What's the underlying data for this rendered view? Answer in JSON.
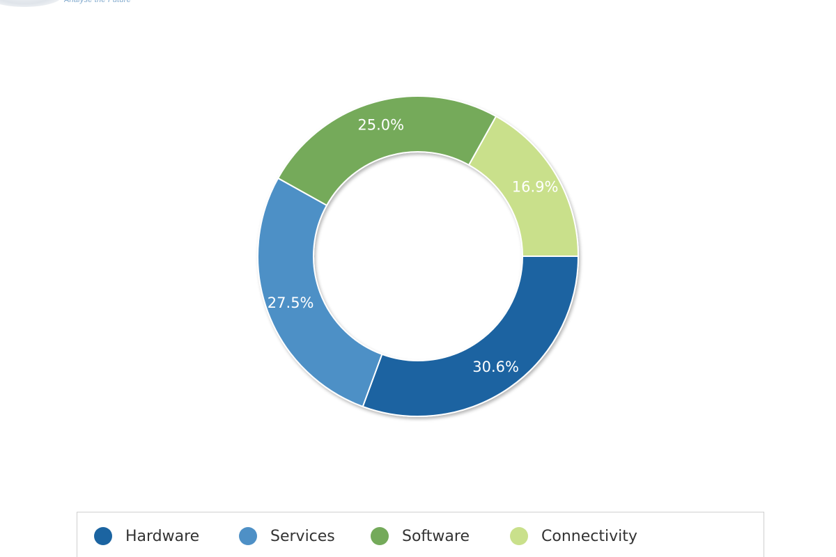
{
  "colors": {
    "hardware": "#1b64a1",
    "services": "#4e90c6",
    "software": "#74aa5a",
    "connectivity": "#c9e08b"
  },
  "chart_data": {
    "type": "pie",
    "variant": "donut",
    "title": "",
    "legend_position": "bottom",
    "slices": [
      {
        "label": "Hardware",
        "value": 30.6,
        "display": "30.6%",
        "color": "#1b64a1"
      },
      {
        "label": "Services",
        "value": 27.5,
        "display": "27.5%",
        "color": "#4e90c6"
      },
      {
        "label": "Software",
        "value": 25.0,
        "display": "25.0%",
        "color": "#74aa5a"
      },
      {
        "label": "Connectivity",
        "value": 16.9,
        "display": "16.9%",
        "color": "#c9e08b"
      }
    ]
  }
}
